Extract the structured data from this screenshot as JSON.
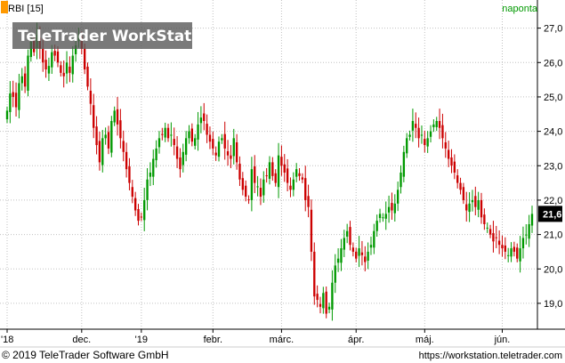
{
  "chart_data": {
    "type": "candlestick",
    "series": [
      {
        "name": "RBI [15]"
      }
    ],
    "interval": "naponta",
    "x_tick_labels": [
      "'18",
      "dec.",
      "'19",
      "febr.",
      "márc.",
      "ápr.",
      "máj.",
      "jún."
    ],
    "y_tick_labels": [
      "19,0",
      "20,0",
      "21,0",
      "22,0",
      "23,0",
      "24,0",
      "25,0",
      "26,0",
      "27,0"
    ],
    "ylim": [
      18.3,
      27.3
    ],
    "last_value_label": "21,6",
    "grid": true,
    "colors": {
      "up": "#009900",
      "down": "#cc0000",
      "grid": "#c0c0c0",
      "last_value_bg": "#000000"
    },
    "close_values": [
      24.6,
      25.1,
      25.0,
      24.7,
      25.4,
      25.6,
      25.3,
      26.2,
      26.6,
      26.3,
      26.8,
      26.4,
      26.0,
      25.8,
      25.9,
      26.3,
      26.2,
      26.0,
      25.7,
      25.6,
      26.0,
      25.7,
      26.2,
      26.5,
      26.8,
      26.4,
      25.8,
      25.3,
      24.8,
      24.1,
      23.6,
      23.1,
      23.8,
      23.9,
      23.5,
      24.3,
      24.6,
      24.2,
      23.8,
      23.4,
      22.9,
      22.5,
      22.1,
      21.7,
      21.4,
      21.5,
      22.0,
      22.6,
      22.8,
      23.2,
      23.5,
      23.8,
      23.9,
      24.1,
      23.8,
      23.9,
      23.6,
      23.2,
      22.9,
      23.4,
      23.8,
      24.0,
      23.7,
      23.8,
      24.2,
      24.4,
      24.3,
      23.9,
      23.7,
      23.5,
      23.3,
      23.7,
      23.8,
      23.5,
      23.3,
      23.2,
      23.8,
      23.1,
      22.6,
      22.3,
      22.1,
      22.0,
      22.9,
      22.5,
      22.4,
      22.1,
      22.6,
      22.7,
      23.1,
      22.7,
      22.5,
      23.3,
      23.0,
      22.8,
      22.5,
      22.3,
      22.6,
      22.9,
      22.7,
      22.6,
      22.0,
      21.8,
      20.5,
      19.2,
      19.1,
      18.9,
      19.3,
      18.7,
      18.9,
      19.6,
      20.1,
      20.3,
      20.6,
      20.9,
      21.1,
      20.7,
      20.5,
      20.3,
      20.6,
      20.4,
      20.2,
      20.5,
      20.7,
      21.1,
      21.4,
      21.6,
      21.5,
      21.6,
      21.8,
      21.7,
      21.9,
      22.3,
      22.8,
      23.4,
      23.8,
      23.9,
      24.3,
      24.1,
      23.8,
      23.9,
      23.6,
      23.8,
      24.0,
      24.2,
      24.3,
      24.1,
      23.8,
      23.5,
      23.2,
      23.0,
      22.8,
      22.5,
      22.3,
      22.0,
      21.7,
      21.9,
      22.0,
      21.8,
      22.0,
      21.5,
      21.3,
      21.2,
      21.0,
      20.8,
      20.9,
      20.7,
      20.6,
      20.5,
      20.4,
      20.6,
      20.5,
      20.3,
      20.6,
      20.9,
      21.0,
      21.3,
      21.6
    ]
  },
  "legend": {
    "series_label": "RBI [15]",
    "interval": "naponta"
  },
  "watermark": "TeleTrader WorkStation",
  "footer": {
    "copyright": "© 2019 TeleTrader Software GmbH",
    "url": "https://workstation.teletrader.com"
  }
}
